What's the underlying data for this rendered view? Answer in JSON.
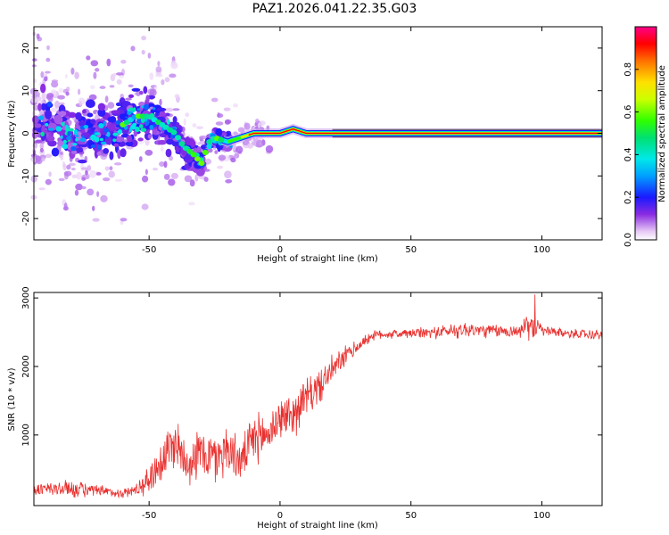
{
  "title": "PAZ1.2026.041.22.35.G03",
  "chart_data": [
    {
      "type": "heatmap",
      "name": "spectrogram",
      "xlabel": "Height of straight line (km)",
      "ylabel": "Frequency (Hz)",
      "xlim": [
        -94,
        123
      ],
      "ylim": [
        -25,
        25
      ],
      "xticks": [
        -50,
        0,
        50,
        100
      ],
      "yticks": [
        -20,
        -10,
        0,
        10,
        20
      ],
      "colorbar": {
        "label": "Normalized spectral amplitude",
        "range": [
          0,
          1
        ],
        "ticks": [
          0.0,
          0.2,
          0.4,
          0.6,
          0.8
        ],
        "tick_labels": [
          "0.0",
          "0.2",
          "0.4",
          "0.6",
          "0.8"
        ]
      },
      "ridge": {
        "description": "dominant frequency track",
        "x": [
          -90,
          -80,
          -70,
          -60,
          -55,
          -50,
          -45,
          -40,
          -37,
          -33,
          -30,
          -27,
          -25,
          -20,
          -15,
          -10,
          -5,
          0,
          5,
          10,
          15,
          20,
          40,
          60,
          80,
          95,
          123
        ],
        "y": [
          3,
          0,
          -1,
          2,
          4,
          4,
          2,
          0,
          -3,
          -5,
          -7,
          -2,
          -1,
          -2,
          -1,
          0,
          0,
          0,
          1,
          0,
          0,
          0,
          0,
          0,
          0,
          0,
          0
        ]
      }
    },
    {
      "type": "line",
      "name": "snr",
      "xlabel": "Height of straight line (km)",
      "ylabel": "SNR (10 * v/v)",
      "xlim": [
        -94,
        123
      ],
      "ylim": [
        -30,
        3080
      ],
      "xticks": [
        -50,
        0,
        50,
        100
      ],
      "yticks": [
        1000,
        2000,
        3000
      ],
      "color": "#e8312f",
      "series": [
        {
          "name": "SNR",
          "x": [
            -94,
            -80,
            -70,
            -60,
            -55,
            -50,
            -45,
            -40,
            -35,
            -30,
            -25,
            -20,
            -15,
            -10,
            -5,
            0,
            5,
            10,
            15,
            20,
            25,
            30,
            35,
            40,
            50,
            60,
            70,
            80,
            90,
            97,
            100,
            110,
            123
          ],
          "mean": [
            200,
            220,
            180,
            150,
            200,
            350,
            650,
            900,
            600,
            750,
            650,
            820,
            600,
            950,
            1000,
            1250,
            1300,
            1550,
            1700,
            1950,
            2150,
            2300,
            2450,
            2470,
            2480,
            2500,
            2540,
            2520,
            2510,
            2600,
            2520,
            2480,
            2460
          ],
          "spread": [
            120,
            160,
            110,
            80,
            120,
            250,
            450,
            450,
            400,
            450,
            480,
            450,
            350,
            450,
            400,
            350,
            400,
            350,
            300,
            250,
            180,
            120,
            90,
            80,
            90,
            110,
            150,
            120,
            110,
            250,
            100,
            80,
            90
          ]
        }
      ]
    }
  ]
}
